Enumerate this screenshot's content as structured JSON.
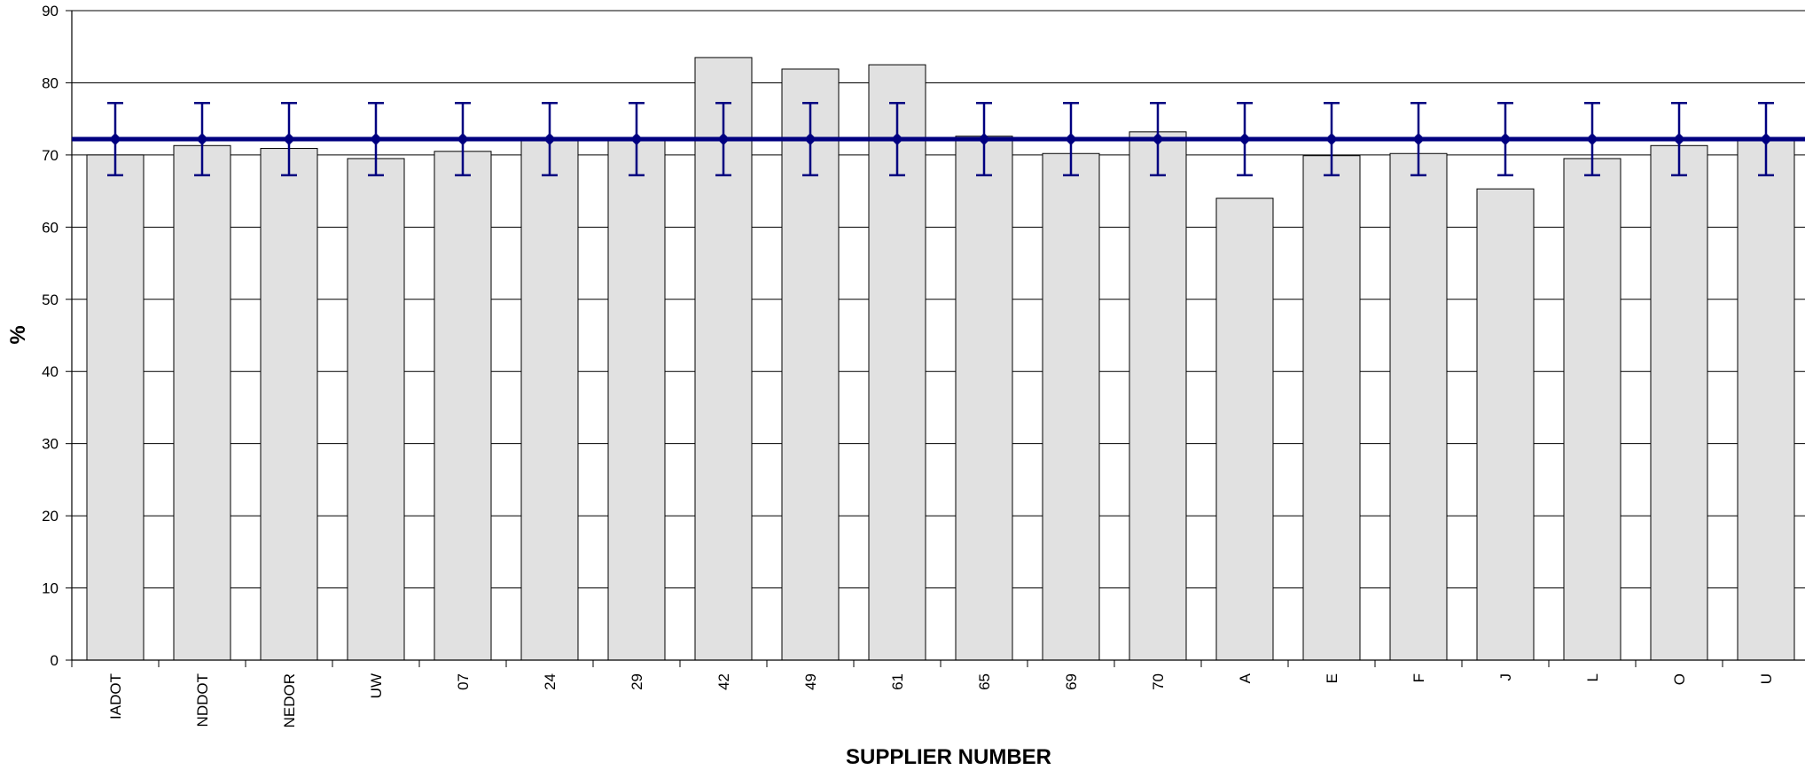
{
  "chart_data": {
    "type": "bar",
    "title": "",
    "xlabel": "SUPPLIER NUMBER",
    "ylabel": "%",
    "ylim": [
      0,
      90
    ],
    "yticks": [
      0,
      10,
      20,
      30,
      40,
      50,
      60,
      70,
      80,
      90
    ],
    "grid": true,
    "legend": "none",
    "categories": [
      "IADOT",
      "NDDOT",
      "NEDOR",
      "UW",
      "07",
      "24",
      "29",
      "42",
      "49",
      "61",
      "65",
      "69",
      "70",
      "A",
      "E",
      "F",
      "J",
      "L",
      "O",
      "U"
    ],
    "series": [
      {
        "kind": "bar",
        "values": [
          70.0,
          71.3,
          70.9,
          69.5,
          70.5,
          72.0,
          72.1,
          83.5,
          81.9,
          82.5,
          72.6,
          70.2,
          73.2,
          64.0,
          69.9,
          70.2,
          65.3,
          69.5,
          71.3,
          72.0
        ]
      },
      {
        "kind": "line",
        "values": [
          72.2,
          72.2,
          72.2,
          72.2,
          72.2,
          72.2,
          72.2,
          72.2,
          72.2,
          72.2,
          72.2,
          72.2,
          72.2,
          72.2,
          72.2,
          72.2,
          72.2,
          72.2,
          72.2,
          72.2
        ],
        "error_upper": 77.2,
        "error_lower": 67.2
      }
    ],
    "colors": {
      "bar_fill": "#e1e1e1",
      "bar_stroke": "#000000",
      "line": "#000080",
      "grid": "#000000"
    }
  }
}
